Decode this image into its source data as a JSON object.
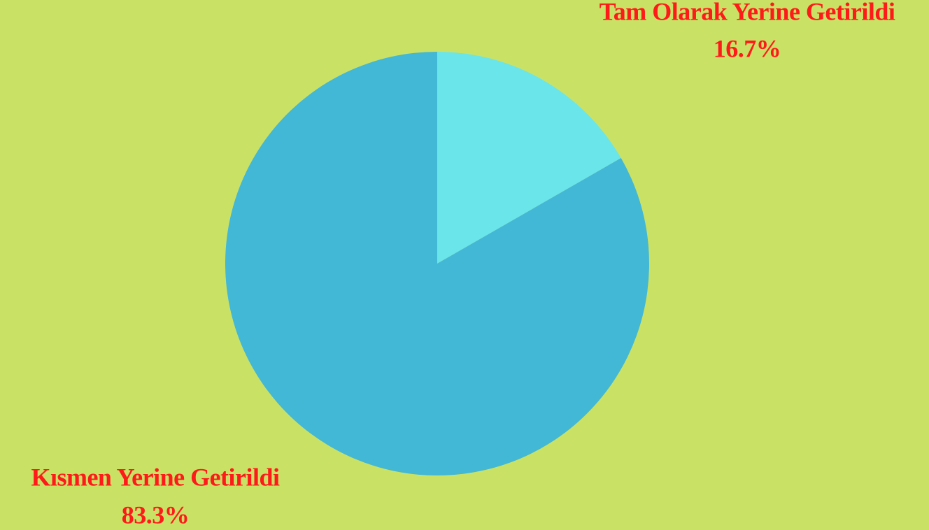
{
  "chart_data": {
    "type": "pie",
    "categories": [
      "Tam Olarak Yerine Getirildi",
      "Kısmen Yerine Getirildi"
    ],
    "values": [
      16.7,
      83.3
    ],
    "value_labels": [
      "16.7%",
      "83.3%"
    ],
    "colors": [
      "#6ae5ea",
      "#42b7d6"
    ],
    "background": "#c9e265",
    "label_color": "#ff1a1a"
  }
}
